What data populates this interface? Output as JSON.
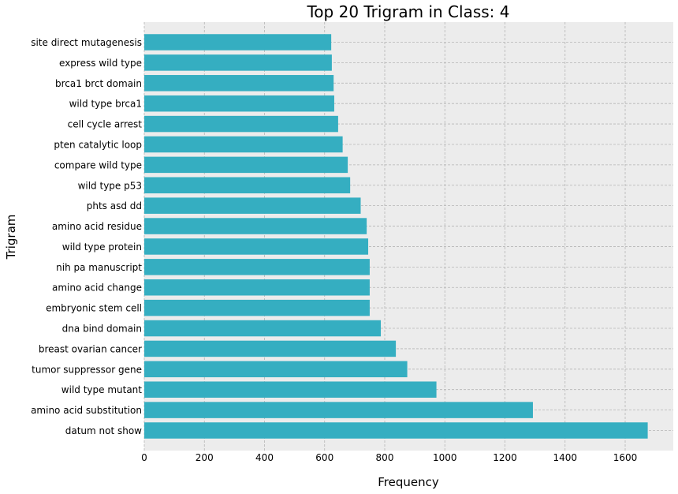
{
  "chart_data": {
    "type": "bar",
    "orientation": "horizontal",
    "title": "Top 20 Trigram in Class: 4",
    "xlabel": "Frequency",
    "ylabel": "Trigram",
    "xlim": [
      0,
      1760
    ],
    "xticks": [
      0,
      200,
      400,
      600,
      800,
      1000,
      1200,
      1400,
      1600
    ],
    "grid": true,
    "bar_color": "#35aec1",
    "plot_background": "#ececec",
    "grid_color": "#b5b5b5",
    "categories": [
      "site direct mutagenesis",
      "express wild type",
      "brca1 brct domain",
      "wild type brca1",
      "cell cycle arrest",
      "pten catalytic loop",
      "compare wild type",
      "wild type p53",
      "phts asd dd",
      "amino acid residue",
      "wild type protein",
      "nih pa manuscript",
      "amino acid change",
      "embryonic stem cell",
      "dna bind domain",
      "breast ovarian cancer",
      "tumor suppressor gene",
      "wild type mutant",
      "amino acid substitution",
      "datum not show"
    ],
    "values": [
      622,
      624,
      630,
      632,
      645,
      660,
      677,
      685,
      720,
      740,
      745,
      750,
      750,
      750,
      787,
      837,
      875,
      972,
      1293,
      1675
    ]
  }
}
